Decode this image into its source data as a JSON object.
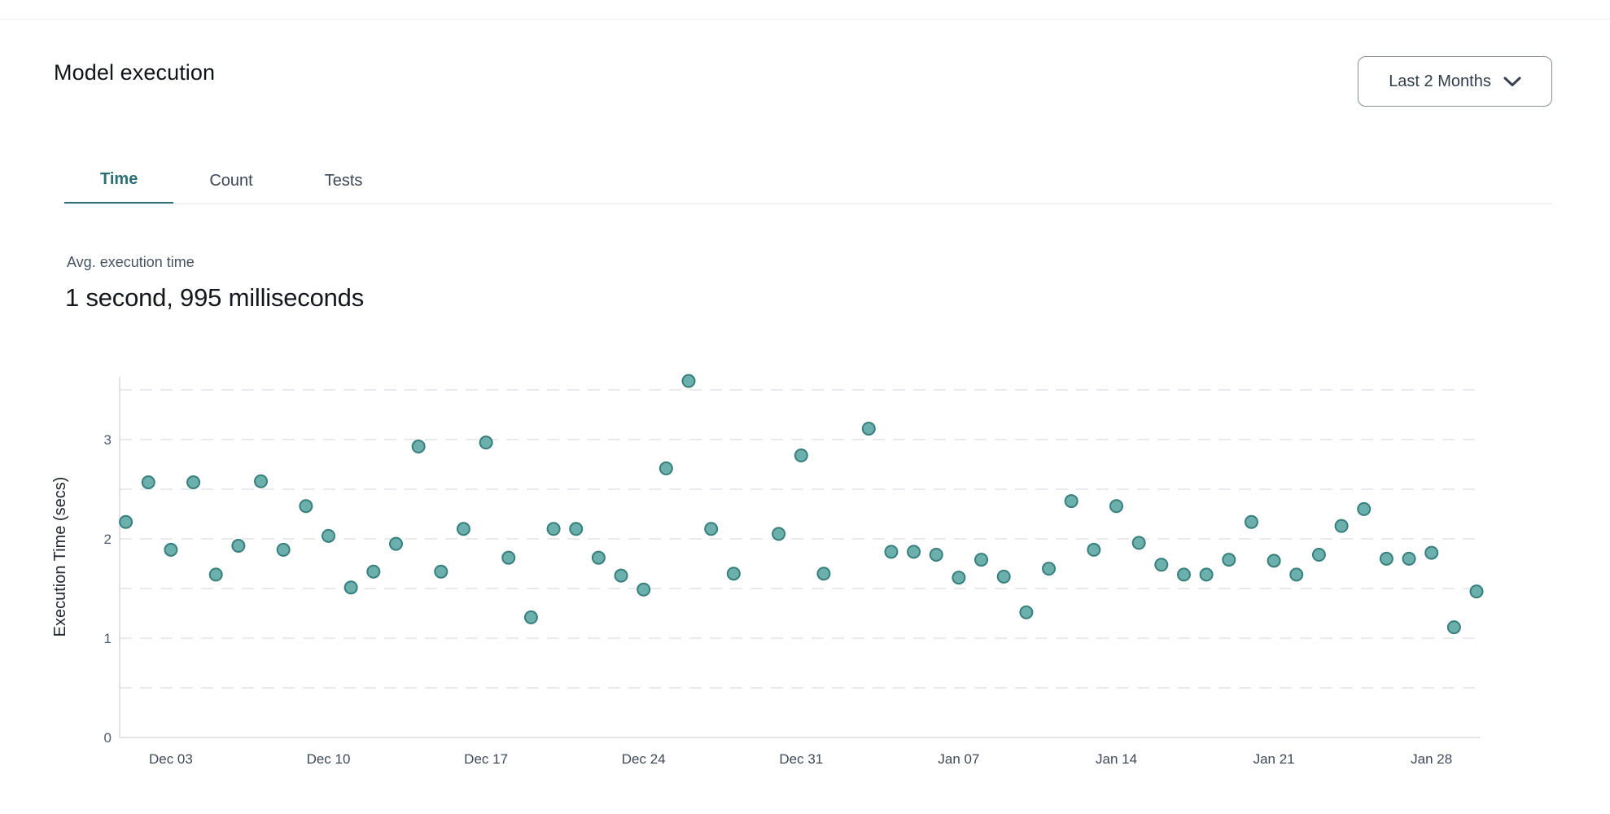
{
  "page": {
    "title": "Model execution"
  },
  "header": {
    "range_selector": {
      "label": "Last 2 Months",
      "icon": "chevron-down-icon"
    }
  },
  "tabs": {
    "items": [
      {
        "label": "Time",
        "active": true
      },
      {
        "label": "Count",
        "active": false
      },
      {
        "label": "Tests",
        "active": false
      }
    ]
  },
  "metric": {
    "label": "Avg. execution time",
    "value": "1 second, 995 milliseconds"
  },
  "chart_data": {
    "type": "scatter",
    "title": "",
    "xlabel": "",
    "ylabel": "Execution Time (secs)",
    "x_unit": "day",
    "x_range": [
      "Dec 01",
      "Jan 30"
    ],
    "ylim": [
      0,
      3.63
    ],
    "y_ticks": [
      0,
      1,
      2,
      3
    ],
    "y_tick_labels": [
      "0",
      "1",
      "2",
      "3"
    ],
    "grid": "horizontal dashed every 0.5",
    "legend": "none",
    "x_tick_labels": [
      "Dec 03",
      "Dec 10",
      "Dec 17",
      "Dec 24",
      "Dec 31",
      "Jan 07",
      "Jan 14",
      "Jan 21",
      "Jan 28"
    ],
    "x_tick_day_indices": [
      2,
      9,
      16,
      23,
      30,
      37,
      44,
      51,
      58
    ],
    "point_color": "#6cb0ad",
    "point_stroke_color": "#377f7c",
    "points": [
      {
        "i": 0,
        "d": "Dec 01",
        "v": 2.17
      },
      {
        "i": 1,
        "d": "Dec 02",
        "v": 2.57
      },
      {
        "i": 2,
        "d": "Dec 03",
        "v": 1.89
      },
      {
        "i": 3,
        "d": "Dec 04",
        "v": 2.57
      },
      {
        "i": 4,
        "d": "Dec 05",
        "v": 1.64
      },
      {
        "i": 5,
        "d": "Dec 06",
        "v": 1.93
      },
      {
        "i": 6,
        "d": "Dec 07",
        "v": 2.58
      },
      {
        "i": 7,
        "d": "Dec 08",
        "v": 1.89
      },
      {
        "i": 8,
        "d": "Dec 09",
        "v": 2.33
      },
      {
        "i": 9,
        "d": "Dec 10",
        "v": 2.03
      },
      {
        "i": 10,
        "d": "Dec 11",
        "v": 1.51
      },
      {
        "i": 11,
        "d": "Dec 12",
        "v": 1.67
      },
      {
        "i": 12,
        "d": "Dec 13",
        "v": 1.95
      },
      {
        "i": 13,
        "d": "Dec 14",
        "v": 2.93
      },
      {
        "i": 14,
        "d": "Dec 15",
        "v": 1.67
      },
      {
        "i": 15,
        "d": "Dec 16",
        "v": 2.1
      },
      {
        "i": 16,
        "d": "Dec 17",
        "v": 2.97
      },
      {
        "i": 17,
        "d": "Dec 18",
        "v": 1.81
      },
      {
        "i": 18,
        "d": "Dec 19",
        "v": 1.21
      },
      {
        "i": 19,
        "d": "Dec 20",
        "v": 2.1
      },
      {
        "i": 20,
        "d": "Dec 21",
        "v": 2.1
      },
      {
        "i": 21,
        "d": "Dec 22",
        "v": 1.81
      },
      {
        "i": 22,
        "d": "Dec 23",
        "v": 1.63
      },
      {
        "i": 23,
        "d": "Dec 24",
        "v": 1.49
      },
      {
        "i": 24,
        "d": "Dec 25",
        "v": 2.71
      },
      {
        "i": 25,
        "d": "Dec 26",
        "v": 3.59
      },
      {
        "i": 26,
        "d": "Dec 27",
        "v": 2.1
      },
      {
        "i": 27,
        "d": "Dec 28",
        "v": 1.65
      },
      {
        "i": 29,
        "d": "Dec 30",
        "v": 2.05
      },
      {
        "i": 30,
        "d": "Dec 31",
        "v": 2.84
      },
      {
        "i": 31,
        "d": "Jan 01",
        "v": 1.65
      },
      {
        "i": 33,
        "d": "Jan 03",
        "v": 3.11
      },
      {
        "i": 34,
        "d": "Jan 04",
        "v": 1.87
      },
      {
        "i": 35,
        "d": "Jan 05",
        "v": 1.87
      },
      {
        "i": 36,
        "d": "Jan 06",
        "v": 1.84
      },
      {
        "i": 37,
        "d": "Jan 07",
        "v": 1.61
      },
      {
        "i": 38,
        "d": "Jan 08",
        "v": 1.79
      },
      {
        "i": 39,
        "d": "Jan 09",
        "v": 1.62
      },
      {
        "i": 40,
        "d": "Jan 10",
        "v": 1.26
      },
      {
        "i": 41,
        "d": "Jan 11",
        "v": 1.7
      },
      {
        "i": 42,
        "d": "Jan 12",
        "v": 2.38
      },
      {
        "i": 43,
        "d": "Jan 13",
        "v": 1.89
      },
      {
        "i": 44,
        "d": "Jan 14",
        "v": 2.33
      },
      {
        "i": 45,
        "d": "Jan 15",
        "v": 1.96
      },
      {
        "i": 46,
        "d": "Jan 16",
        "v": 1.74
      },
      {
        "i": 47,
        "d": "Jan 17",
        "v": 1.64
      },
      {
        "i": 48,
        "d": "Jan 18",
        "v": 1.64
      },
      {
        "i": 49,
        "d": "Jan 19",
        "v": 1.79
      },
      {
        "i": 50,
        "d": "Jan 20",
        "v": 2.17
      },
      {
        "i": 51,
        "d": "Jan 21",
        "v": 1.78
      },
      {
        "i": 52,
        "d": "Jan 22",
        "v": 1.64
      },
      {
        "i": 53,
        "d": "Jan 23",
        "v": 1.84
      },
      {
        "i": 54,
        "d": "Jan 24",
        "v": 2.13
      },
      {
        "i": 55,
        "d": "Jan 25",
        "v": 2.3
      },
      {
        "i": 56,
        "d": "Jan 26",
        "v": 1.8
      },
      {
        "i": 57,
        "d": "Jan 27",
        "v": 1.8
      },
      {
        "i": 58,
        "d": "Jan 28",
        "v": 1.86
      },
      {
        "i": 59,
        "d": "Jan 29",
        "v": 1.11
      },
      {
        "i": 60,
        "d": "Jan 30",
        "v": 1.47
      }
    ]
  }
}
